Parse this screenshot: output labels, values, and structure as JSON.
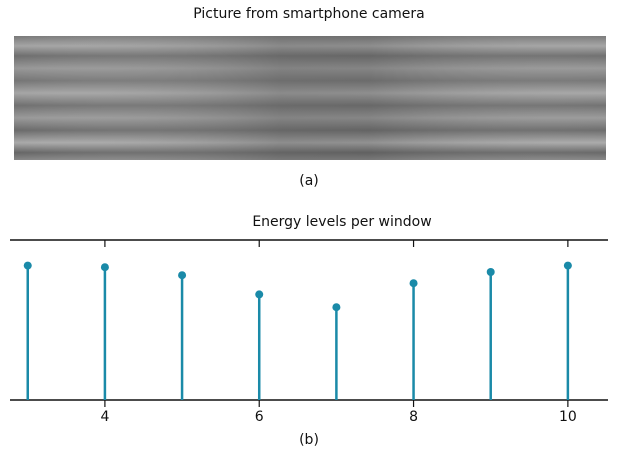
{
  "picture": {
    "title": "Picture from smartphone camera",
    "caption": "(a)"
  },
  "chart_data": {
    "type": "stem",
    "title": "Energy levels per window",
    "caption": "(b)",
    "x": [
      3,
      4,
      5,
      6,
      7,
      8,
      9,
      10
    ],
    "values": [
      0.84,
      0.83,
      0.78,
      0.66,
      0.58,
      0.73,
      0.8,
      0.84
    ],
    "color": "#1a8aa8",
    "xlim": [
      2.77,
      10.52
    ],
    "ylim": [
      0,
      1
    ],
    "xticks": [
      4,
      6,
      8,
      10
    ]
  }
}
